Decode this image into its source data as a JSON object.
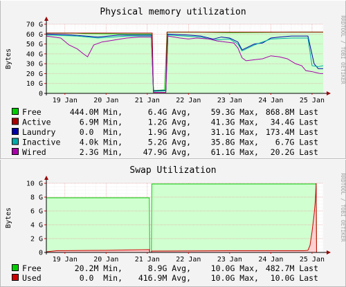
{
  "chart_data": [
    {
      "type": "area",
      "title": "Physical memory utilization",
      "ylabel": "Bytes",
      "vertical_label": "RRDTOOL / TOBI OETIKER",
      "ylim": [
        0,
        70
      ],
      "yticks": [
        "0",
        "10 G",
        "20 G",
        "30 G",
        "40 G",
        "50 G",
        "60 G",
        "70 G"
      ],
      "xlim": [
        18.55,
        25.27
      ],
      "xticks": [
        {
          "x": 19,
          "label": "19 Jan"
        },
        {
          "x": 20,
          "label": "20 Jan"
        },
        {
          "x": 21,
          "label": "21 Jan"
        },
        {
          "x": 22,
          "label": "22 Jan"
        },
        {
          "x": 23,
          "label": "23 Jan"
        },
        {
          "x": 24,
          "label": "24 Jan"
        },
        {
          "x": 25,
          "label": "25 Jan"
        }
      ],
      "grid": true,
      "legend_position": "bottom",
      "series": [
        {
          "name": "Free",
          "color": "#00cc00",
          "fill": "#d0ffd0",
          "points": [
            [
              18.55,
              61
            ],
            [
              19.2,
              61
            ],
            [
              19.5,
              60.5
            ],
            [
              20.5,
              60
            ],
            [
              21.1,
              60
            ],
            [
              21.15,
              3
            ],
            [
              21.2,
              3
            ],
            [
              21.42,
              3.5
            ],
            [
              21.48,
              62
            ],
            [
              22.2,
              62
            ],
            [
              23.0,
              61.5
            ],
            [
              24.5,
              62
            ],
            [
              25.27,
              62
            ]
          ]
        },
        {
          "name": "Active",
          "color": "#aa0000",
          "points": [
            [
              18.55,
              61
            ],
            [
              21.12,
              61
            ],
            [
              21.15,
              1
            ],
            [
              21.45,
              1
            ],
            [
              21.48,
              62
            ],
            [
              25.27,
              62
            ]
          ]
        },
        {
          "name": "Laundry",
          "color": "#0000aa",
          "points": [
            [
              18.55,
              60
            ],
            [
              19.0,
              59.5
            ],
            [
              19.5,
              58
            ],
            [
              19.8,
              57
            ],
            [
              20.3,
              59
            ],
            [
              21.1,
              59
            ],
            [
              21.15,
              2.5
            ],
            [
              21.45,
              3
            ],
            [
              21.5,
              60
            ],
            [
              22.0,
              59
            ],
            [
              22.3,
              58
            ],
            [
              22.6,
              55
            ],
            [
              22.8,
              57
            ],
            [
              23.0,
              56
            ],
            [
              23.2,
              52
            ],
            [
              23.3,
              44
            ],
            [
              23.6,
              50
            ],
            [
              23.8,
              51
            ],
            [
              24.0,
              56
            ],
            [
              24.2,
              57
            ],
            [
              24.5,
              58
            ],
            [
              24.9,
              58
            ],
            [
              25.05,
              30
            ],
            [
              25.15,
              25
            ],
            [
              25.27,
              25
            ]
          ]
        },
        {
          "name": "Inactive",
          "color": "#00aaaa",
          "points": [
            [
              18.55,
              59
            ],
            [
              19.3,
              58
            ],
            [
              19.8,
              56
            ],
            [
              20.5,
              58
            ],
            [
              21.1,
              58
            ],
            [
              21.15,
              2
            ],
            [
              21.45,
              2.5
            ],
            [
              21.5,
              59
            ],
            [
              22.3,
              57
            ],
            [
              22.6,
              54
            ],
            [
              23.0,
              55
            ],
            [
              23.2,
              50
            ],
            [
              23.3,
              43
            ],
            [
              23.6,
              49
            ],
            [
              24.0,
              55
            ],
            [
              24.5,
              56
            ],
            [
              24.9,
              56
            ],
            [
              25.0,
              28
            ],
            [
              25.15,
              27
            ],
            [
              25.27,
              28
            ]
          ]
        },
        {
          "name": "Wired",
          "color": "#aa00aa",
          "points": [
            [
              18.55,
              58
            ],
            [
              18.9,
              56
            ],
            [
              19.1,
              49
            ],
            [
              19.3,
              45
            ],
            [
              19.45,
              40
            ],
            [
              19.55,
              37
            ],
            [
              19.7,
              49
            ],
            [
              19.9,
              52
            ],
            [
              20.2,
              54
            ],
            [
              20.5,
              56
            ],
            [
              20.8,
              57
            ],
            [
              21.1,
              57
            ],
            [
              21.15,
              1
            ],
            [
              21.45,
              1
            ],
            [
              21.5,
              58
            ],
            [
              21.8,
              56
            ],
            [
              22.0,
              55
            ],
            [
              22.2,
              56
            ],
            [
              22.5,
              55
            ],
            [
              22.7,
              53
            ],
            [
              22.9,
              52
            ],
            [
              23.1,
              51
            ],
            [
              23.2,
              46
            ],
            [
              23.3,
              36
            ],
            [
              23.4,
              33
            ],
            [
              23.6,
              34
            ],
            [
              23.8,
              35
            ],
            [
              24.0,
              38
            ],
            [
              24.2,
              37
            ],
            [
              24.4,
              35
            ],
            [
              24.6,
              30
            ],
            [
              24.75,
              28
            ],
            [
              24.85,
              23
            ],
            [
              25.0,
              22
            ],
            [
              25.1,
              21
            ],
            [
              25.2,
              20
            ],
            [
              25.27,
              20
            ]
          ]
        }
      ],
      "legend": [
        {
          "name": "Free",
          "color": "#00cc00",
          "min": "444.0M Min,",
          "avg": "6.4G Avg,",
          "max": "59.3G Max,",
          "last": "868.8M Last"
        },
        {
          "name": "Active",
          "color": "#aa0000",
          "min": "6.9M Min,",
          "avg": "1.2G Avg,",
          "max": "41.3G Max,",
          "last": "34.4G Last"
        },
        {
          "name": "Laundry",
          "color": "#0000aa",
          "min": "0.0  Min,",
          "avg": "1.9G Avg,",
          "max": "31.1G Max,",
          "last": "173.4M Last"
        },
        {
          "name": "Inactive",
          "color": "#00aaaa",
          "min": "4.0k Min,",
          "avg": "5.2G Avg,",
          "max": "35.8G Max,",
          "last": "6.7G Last"
        },
        {
          "name": "Wired",
          "color": "#aa00aa",
          "min": "2.3G Min,",
          "avg": "47.9G Avg,",
          "max": "61.1G Max,",
          "last": "20.2G Last"
        }
      ]
    },
    {
      "type": "area",
      "title": "Swap Utilization",
      "ylabel": "Bytes",
      "vertical_label": "RRDTOOL / TOBI OETIKER",
      "ylim": [
        0,
        10
      ],
      "yticks": [
        "0",
        "2 G",
        "4 G",
        "6 G",
        "8 G",
        "10 G"
      ],
      "xlim": [
        18.55,
        25.27
      ],
      "xticks": [
        {
          "x": 19,
          "label": "19 Jan"
        },
        {
          "x": 20,
          "label": "20 Jan"
        },
        {
          "x": 21,
          "label": "21 Jan"
        },
        {
          "x": 22,
          "label": "22 Jan"
        },
        {
          "x": 23,
          "label": "23 Jan"
        },
        {
          "x": 24,
          "label": "24 Jan"
        },
        {
          "x": 25,
          "label": "25 Jan"
        }
      ],
      "grid": true,
      "legend_position": "bottom",
      "series": [
        {
          "name": "Free",
          "color": "#00cc00",
          "fill": "#d0ffd0",
          "points": [
            [
              18.55,
              7.9
            ],
            [
              21.05,
              7.9
            ],
            [
              21.06,
              0
            ],
            [
              21.1,
              0
            ],
            [
              21.11,
              9.9
            ],
            [
              25.1,
              9.9
            ],
            [
              25.11,
              0
            ],
            [
              25.27,
              0
            ]
          ]
        },
        {
          "name": "Used",
          "color": "#cc0000",
          "fill": "#ffd0d0",
          "points": [
            [
              18.55,
              0.1
            ],
            [
              18.8,
              0.25
            ],
            [
              20.0,
              0.3
            ],
            [
              20.5,
              0.35
            ],
            [
              21.05,
              0.4
            ],
            [
              21.06,
              0
            ],
            [
              21.1,
              0
            ],
            [
              21.11,
              0.2
            ],
            [
              23.0,
              0.25
            ],
            [
              24.8,
              0.25
            ],
            [
              24.9,
              0.3
            ],
            [
              24.95,
              1
            ],
            [
              25.0,
              3
            ],
            [
              25.05,
              5.5
            ],
            [
              25.08,
              7.5
            ],
            [
              25.1,
              10
            ],
            [
              25.11,
              0
            ],
            [
              25.27,
              0
            ]
          ]
        }
      ],
      "legend": [
        {
          "name": "Free",
          "color": "#00cc00",
          "min": "20.2M Min,",
          "avg": "8.9G Avg,",
          "max": "10.0G Max,",
          "last": "482.7M Last"
        },
        {
          "name": "Used",
          "color": "#cc0000",
          "min": "0.0  Min,",
          "avg": "416.9M Avg,",
          "max": "10.0G Max,",
          "last": "10.0G Last"
        }
      ]
    }
  ]
}
